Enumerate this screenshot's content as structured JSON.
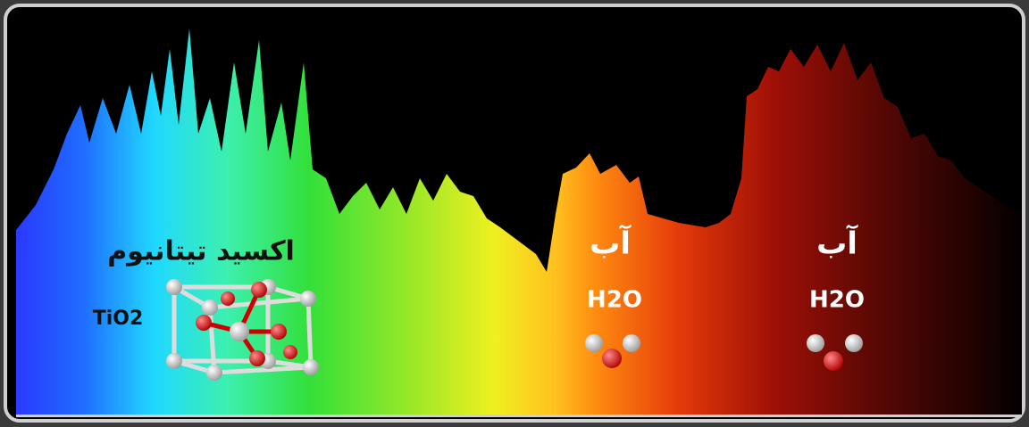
{
  "labels": {
    "titanium_oxide": "اکسید تیتانیوم",
    "titanium_formula": "TiO2",
    "water_left": "آب",
    "water_left_formula": "H2O",
    "water_right": "آب",
    "water_right_formula": "H2O"
  }
}
